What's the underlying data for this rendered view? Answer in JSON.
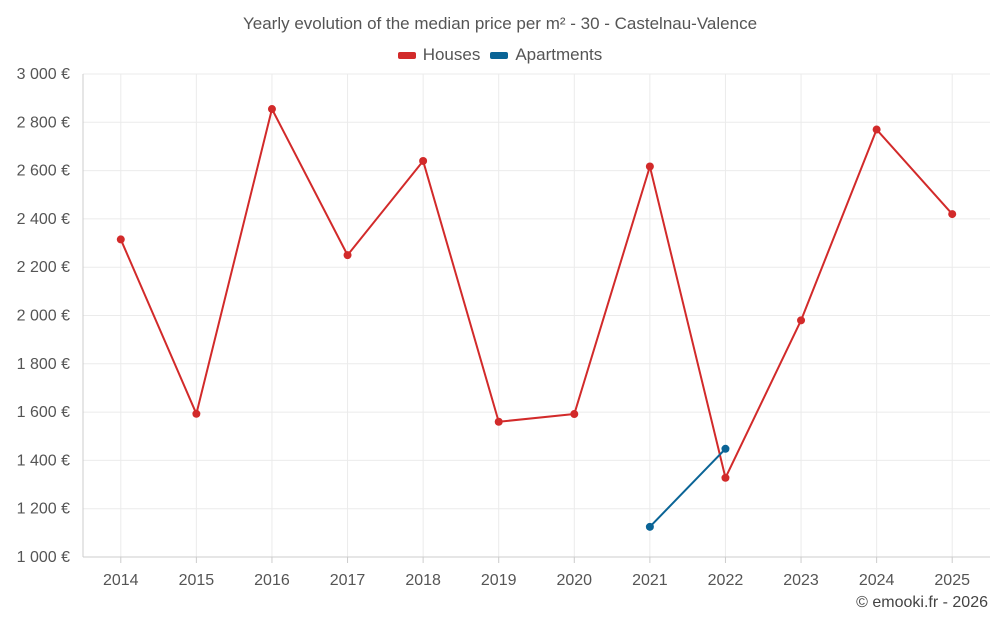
{
  "chart_data": {
    "type": "line",
    "title": "Yearly evolution of the median price per m² - 30 - Castelnau-Valence",
    "xlabel": "",
    "ylabel": "",
    "categories": [
      "2014",
      "2015",
      "2016",
      "2017",
      "2018",
      "2019",
      "2020",
      "2021",
      "2022",
      "2023",
      "2024",
      "2025"
    ],
    "ylim": [
      1000,
      3000
    ],
    "yticks": [
      1000,
      1200,
      1400,
      1600,
      1800,
      2000,
      2200,
      2400,
      2600,
      2800,
      3000
    ],
    "ytick_labels": [
      "1 000 €",
      "1 200 €",
      "1 400 €",
      "1 600 €",
      "1 800 €",
      "2 000 €",
      "2 200 €",
      "2 400 €",
      "2 600 €",
      "2 800 €",
      "3 000 €"
    ],
    "grid": true,
    "legend_position": "top-center",
    "series": [
      {
        "name": "Houses",
        "color": "#d22a2a",
        "values": [
          2315,
          1593,
          2855,
          2250,
          2640,
          1560,
          1592,
          2617,
          1328,
          1980,
          2770,
          2420
        ]
      },
      {
        "name": "Apartments",
        "color": "#0a6496",
        "values": [
          null,
          null,
          null,
          null,
          null,
          null,
          null,
          1125,
          1448,
          null,
          null,
          null
        ]
      }
    ]
  },
  "credit": "© emooki.fr - 2026"
}
